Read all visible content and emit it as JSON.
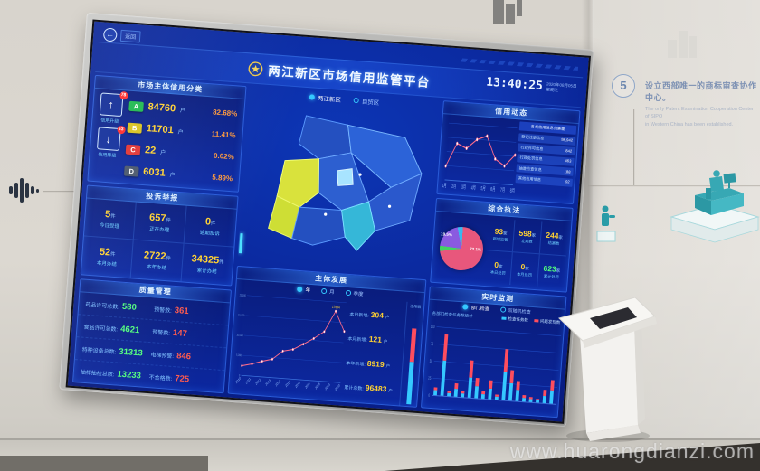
{
  "palette": {
    "accent_cyan": "#35c8ff",
    "number_yellow": "#ffd232",
    "alert_red": "#ff4d4d",
    "ok_green": "#52ff7d",
    "line_pink": "#ff6b8a",
    "deep_blue": "#0a2596"
  },
  "watermark": "www.huarongdianzi.com",
  "wall": {
    "step_number": "5",
    "note_zh": "设立西部唯一的商标审查协作中心。",
    "note_en1": "The only Patent Examination Cooperation Center of SIPO",
    "note_en2": "in Western China has been established."
  },
  "screen": {
    "back_label": "返回",
    "back_arrow": "←",
    "title": "两江新区市场信用监管平台",
    "clock": {
      "time": "13:40:25",
      "date": "2020年08月05日",
      "week": "星期三"
    },
    "map_tabs": [
      {
        "label": "两江新区"
      },
      {
        "label": "自贸区"
      }
    ],
    "credit": {
      "title": "市场主体信用分类",
      "up": {
        "arrow": "↑",
        "badge": "78",
        "label": "信用升级"
      },
      "down": {
        "arrow": "↓",
        "badge": "63",
        "label": "信用降级"
      },
      "rows": [
        {
          "grade": "A",
          "count": "84760",
          "unit": "户",
          "pct": "82.68%",
          "color": "#1eb94f"
        },
        {
          "grade": "B",
          "count": "11701",
          "unit": "户",
          "pct": "11.41%",
          "color": "#d9c21e"
        },
        {
          "grade": "C",
          "count": "22",
          "unit": "户",
          "pct": "0.02%",
          "color": "#e23434"
        },
        {
          "grade": "D",
          "count": "6031",
          "unit": "户",
          "pct": "5.89%",
          "color": "#49566b"
        }
      ]
    },
    "complaints": {
      "title": "投诉举报",
      "cells": [
        {
          "value": "5",
          "unit": "件",
          "label": "今日受理"
        },
        {
          "value": "657",
          "unit": "件",
          "label": "正在办理"
        },
        {
          "value": "0",
          "unit": "件",
          "label": "逾期投诉"
        },
        {
          "value": "52",
          "unit": "件",
          "label": "本月办结"
        },
        {
          "value": "2722",
          "unit": "件",
          "label": "本年办结"
        },
        {
          "value": "34325",
          "unit": "件",
          "label": "累计办结"
        }
      ]
    },
    "quality": {
      "title": "质量管理",
      "rows": [
        {
          "l1": "药品许可总数:",
          "v1": "580",
          "l2": "预警数:",
          "v2": "361"
        },
        {
          "l1": "食品许可总数:",
          "v1": "4621",
          "l2": "预警数:",
          "v2": "147"
        },
        {
          "l1": "特种设备总数:",
          "v1": "31313",
          "l2": "电梯预警:",
          "v2": "846"
        },
        {
          "l1": "抽样抽检总数:",
          "v1": "13233",
          "l2": "不合格数:",
          "v2": "725"
        }
      ]
    },
    "develop": {
      "title": "主体发展",
      "mini_title": "注吊销"
    },
    "intel": {
      "title": "信用动态",
      "list_header": "各类信用信息归集量",
      "list": [
        {
          "label": "登记注册信息",
          "value": "98,942"
        },
        {
          "label": "行政许可信息",
          "value": "842"
        },
        {
          "label": "行政处罚信息",
          "value": "463"
        },
        {
          "label": "抽查检查信息",
          "value": "188"
        },
        {
          "label": "其他信用信息",
          "value": "92"
        }
      ]
    },
    "enforce": {
      "title": "综合执法",
      "stats": [
        {
          "value": "93",
          "unit": "家",
          "label": "新增监管"
        },
        {
          "value": "598",
          "unit": "家",
          "label": "立案数"
        },
        {
          "value": "244",
          "unit": "家",
          "label": "结案数"
        },
        {
          "value": "0",
          "unit": "家",
          "label": "本日处罚"
        },
        {
          "value": "0",
          "unit": "家",
          "label": "本月处罚"
        },
        {
          "value": "623",
          "unit": "家",
          "label": "累计处罚"
        }
      ]
    },
    "monitor": {
      "title": "实时监测",
      "caption": "各部门检查任务数统计"
    }
  },
  "chart_data": [
    {
      "type": "line",
      "title": "主体发展",
      "x": [
        "2010",
        "2011",
        "2012",
        "2013",
        "2014",
        "2015",
        "2016",
        "2017",
        "2018",
        "2019",
        "2020"
      ],
      "values": [
        2408,
        3050,
        3900,
        4600,
        6800,
        7400,
        8900,
        10500,
        12400,
        17694,
        12800
      ],
      "peak_label": "17694",
      "series_color": "#ff6b8a",
      "ylim": [
        0,
        20000
      ],
      "filters": [
        "年",
        "月",
        "季度"
      ],
      "stats": [
        {
          "label": "本日新增:",
          "value": "304",
          "unit": "户"
        },
        {
          "label": "本月新增:",
          "value": "121",
          "unit": "户"
        },
        {
          "label": "本年新增:",
          "value": "8919",
          "unit": "户"
        },
        {
          "label": "累计总数:",
          "value": "96483",
          "unit": "户"
        }
      ]
    },
    {
      "type": "line",
      "title": "信用动态",
      "x": [
        "1月",
        "2月",
        "3月",
        "4月",
        "5月",
        "6月",
        "7月",
        "8月"
      ],
      "values": [
        165,
        275,
        255,
        300,
        320,
        215,
        185,
        240
      ],
      "series_color": "#ff6b8a"
    },
    {
      "type": "pie",
      "title": "综合执法",
      "slices": [
        {
          "label": "72.1%",
          "value": 72,
          "color": "#e8577c"
        },
        {
          "label": "",
          "value": 4,
          "color": "#43d463"
        },
        {
          "label": "19.5%",
          "value": 20,
          "color": "#8a5ae0"
        },
        {
          "label": "",
          "value": 4,
          "color": "#39b9f0"
        }
      ]
    },
    {
      "type": "stacked-bar",
      "title": "实时监测",
      "tabs": [
        "部门检查",
        "双随机检查"
      ],
      "series": [
        {
          "name": "检查任务数",
          "color": "#35c8ff"
        },
        {
          "name": "问题发现数",
          "color": "#ff4d5e"
        }
      ],
      "ylim": [
        0,
        100
      ],
      "values": [
        [
          8,
          4
        ],
        [
          52,
          38
        ],
        [
          5,
          3
        ],
        [
          12,
          8
        ],
        [
          6,
          4
        ],
        [
          30,
          25
        ],
        [
          18,
          12
        ],
        [
          7,
          5
        ],
        [
          16,
          12
        ],
        [
          5,
          3
        ],
        [
          42,
          33
        ],
        [
          26,
          19
        ],
        [
          17,
          13
        ],
        [
          6,
          4
        ],
        [
          5,
          3
        ],
        [
          4,
          2
        ],
        [
          11,
          9
        ],
        [
          20,
          15
        ]
      ]
    }
  ]
}
